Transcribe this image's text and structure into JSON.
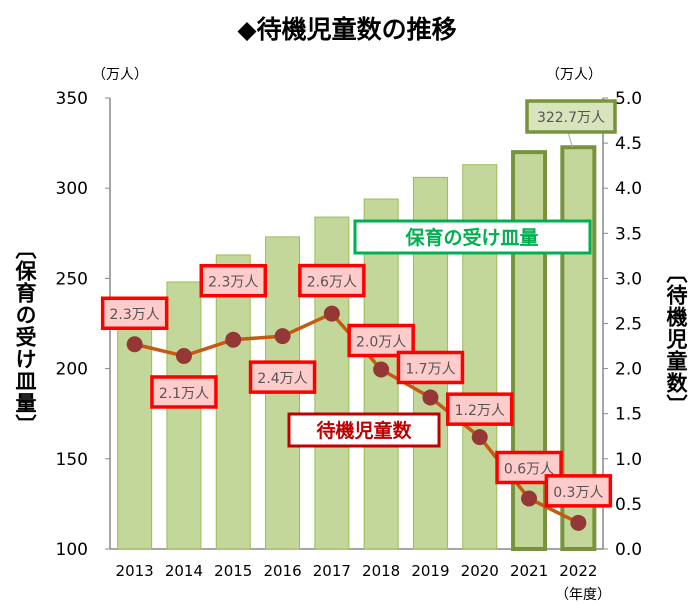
{
  "chart_data": {
    "type": "bar+line",
    "title": "◆待機児童数の推移",
    "categories": [
      "2013",
      "2014",
      "2015",
      "2016",
      "2017",
      "2018",
      "2019",
      "2020",
      "2021",
      "2022"
    ],
    "x_unit": "（年度）",
    "left_axis": {
      "label": "〔保育の受け皿量〕",
      "unit": "（万人）",
      "range": [
        100,
        350
      ],
      "ticks": [
        "100",
        "150",
        "200",
        "250",
        "300",
        "350"
      ]
    },
    "right_axis": {
      "label": "〔待機児童数〕",
      "unit": "（万人）",
      "range": [
        0,
        5
      ],
      "ticks": [
        "0.0",
        "0.5",
        "1.0",
        "1.5",
        "2.0",
        "2.5",
        "3.0",
        "3.5",
        "4.0",
        "4.5",
        "5.0"
      ]
    },
    "series": [
      {
        "name": "保育の受け皿量",
        "type": "bar",
        "axis": "left",
        "color": "#c4d79b",
        "border": "#9bbb59",
        "highlight_border": "#77933c",
        "values": [
          234,
          248,
          263,
          273,
          284,
          294,
          306,
          313,
          320,
          322.7
        ],
        "data_labels": {
          "9": "322.7万人"
        }
      },
      {
        "name": "待機児童数",
        "type": "line",
        "axis": "right",
        "color": "#c65911",
        "marker_color": "#953735",
        "values": [
          2.27,
          2.14,
          2.32,
          2.36,
          2.61,
          1.99,
          1.68,
          1.24,
          0.56,
          0.29
        ],
        "data_labels": [
          "2.3万人",
          "2.1万人",
          "2.3万人",
          "2.4万人",
          "2.6万人",
          "2.0万人",
          "1.7万人",
          "1.2万人",
          "0.6万人",
          "0.3万人"
        ]
      }
    ],
    "grid": false
  }
}
